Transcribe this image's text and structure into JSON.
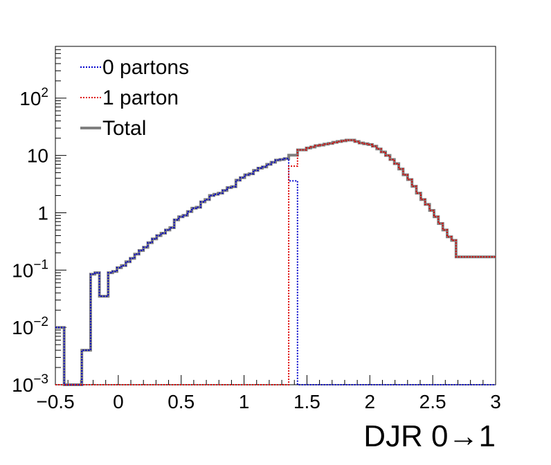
{
  "chart_data": {
    "type": "line",
    "title": "",
    "xlabel": "DJR 0→1",
    "ylabel": "",
    "xlim": [
      -0.5,
      3
    ],
    "ylim": [
      0.001,
      800
    ],
    "yscale": "log",
    "grid": false,
    "legend_position": "top-left",
    "x_ticks": [
      {
        "value": -0.5,
        "label": "−0.5"
      },
      {
        "value": 0,
        "label": "0"
      },
      {
        "value": 0.5,
        "label": "0.5"
      },
      {
        "value": 1,
        "label": "1"
      },
      {
        "value": 1.5,
        "label": "1.5"
      },
      {
        "value": 2,
        "label": "2"
      },
      {
        "value": 2.5,
        "label": "2.5"
      },
      {
        "value": 3,
        "label": "3"
      }
    ],
    "y_ticks": [
      {
        "value": 0.001,
        "base": "10",
        "exp": "−3"
      },
      {
        "value": 0.01,
        "base": "10",
        "exp": "−2"
      },
      {
        "value": 0.1,
        "base": "10",
        "exp": "−1"
      },
      {
        "value": 1,
        "base": "1",
        "exp": ""
      },
      {
        "value": 10,
        "base": "10",
        "exp": ""
      },
      {
        "value": 100,
        "base": "10",
        "exp": "2"
      }
    ],
    "bin_width": 0.035,
    "bin_edges": [
      -0.5,
      3.0
    ],
    "series": [
      {
        "name": "0 partons",
        "color": "#0000cc",
        "style": "dotted",
        "values": [
          0.01,
          0.01,
          0.001,
          0.001,
          0.001,
          0.001,
          0.004,
          0.004,
          0.085,
          0.09,
          0.035,
          0.035,
          0.09,
          0.095,
          0.11,
          0.12,
          0.14,
          0.16,
          0.19,
          0.22,
          0.25,
          0.3,
          0.35,
          0.4,
          0.44,
          0.5,
          0.55,
          0.75,
          0.85,
          0.9,
          1.05,
          1.2,
          1.25,
          1.55,
          1.7,
          2.0,
          2.1,
          2.2,
          2.45,
          2.75,
          2.85,
          3.7,
          4.1,
          4.6,
          4.8,
          5.5,
          6.0,
          6.3,
          7.0,
          7.6,
          8.3,
          8.5,
          8.8,
          3.6,
          3.6,
          0.001,
          0.001,
          0.001,
          0.001,
          0.001,
          0.001,
          0.001,
          0.001,
          0.001,
          0.001,
          0.001,
          0.001,
          0.001,
          0.001,
          0.001,
          0.001,
          0.001,
          0.001,
          0.001,
          0.001,
          0.001,
          0.001,
          0.001,
          0.001,
          0.001,
          0.001,
          0.001,
          0.001,
          0.001,
          0.001,
          0.001,
          0.001,
          0.001,
          0.001,
          0.001,
          0.001,
          0.001,
          0.001,
          0.001,
          0.001,
          0.001,
          0.001,
          0.001,
          0.001,
          0.001
        ]
      },
      {
        "name": "1 parton",
        "color": "#dd0000",
        "style": "dotted",
        "values": [
          0.001,
          0.001,
          0.001,
          0.001,
          0.001,
          0.001,
          0.001,
          0.001,
          0.001,
          0.001,
          0.001,
          0.001,
          0.001,
          0.001,
          0.001,
          0.001,
          0.001,
          0.001,
          0.001,
          0.001,
          0.001,
          0.001,
          0.001,
          0.001,
          0.001,
          0.001,
          0.001,
          0.001,
          0.001,
          0.001,
          0.001,
          0.001,
          0.001,
          0.001,
          0.001,
          0.001,
          0.001,
          0.001,
          0.001,
          0.001,
          0.001,
          0.001,
          0.001,
          0.001,
          0.001,
          0.001,
          0.001,
          0.001,
          0.001,
          0.001,
          0.001,
          0.001,
          0.001,
          6.5,
          6.5,
          12.5,
          12.5,
          13.5,
          14.0,
          14.8,
          15.2,
          15.8,
          16.2,
          17.0,
          17.5,
          18.0,
          18.5,
          18.5,
          17.5,
          16.5,
          16.0,
          15.5,
          14.5,
          13.0,
          11.5,
          10.0,
          8.5,
          7.2,
          5.8,
          4.6,
          3.8,
          2.9,
          2.2,
          1.7,
          1.4,
          1.1,
          0.85,
          0.65,
          0.5,
          0.38,
          0.33,
          0.17,
          0.17,
          0.17,
          0.17,
          0.17,
          0.17,
          0.17,
          0.17,
          0.17
        ]
      },
      {
        "name": "Total",
        "color": "#808080",
        "style": "solid",
        "values": [
          0.01,
          0.01,
          0.001,
          0.001,
          0.001,
          0.001,
          0.004,
          0.004,
          0.085,
          0.09,
          0.035,
          0.035,
          0.09,
          0.095,
          0.11,
          0.12,
          0.14,
          0.16,
          0.19,
          0.22,
          0.25,
          0.3,
          0.35,
          0.4,
          0.44,
          0.5,
          0.55,
          0.75,
          0.85,
          0.9,
          1.05,
          1.2,
          1.25,
          1.55,
          1.7,
          2.0,
          2.1,
          2.2,
          2.45,
          2.75,
          2.85,
          3.7,
          4.1,
          4.6,
          4.8,
          5.5,
          6.0,
          6.3,
          7.0,
          7.6,
          8.3,
          8.5,
          8.8,
          10.1,
          10.1,
          12.5,
          12.5,
          13.5,
          14.0,
          14.8,
          15.2,
          15.8,
          16.2,
          17.0,
          17.5,
          18.0,
          18.5,
          18.5,
          17.5,
          16.5,
          16.0,
          15.5,
          14.5,
          13.0,
          11.5,
          10.0,
          8.5,
          7.2,
          5.8,
          4.6,
          3.8,
          2.9,
          2.2,
          1.7,
          1.4,
          1.1,
          0.85,
          0.65,
          0.5,
          0.38,
          0.33,
          0.17,
          0.17,
          0.17,
          0.17,
          0.17,
          0.17,
          0.17,
          0.17,
          0.17
        ]
      }
    ]
  }
}
